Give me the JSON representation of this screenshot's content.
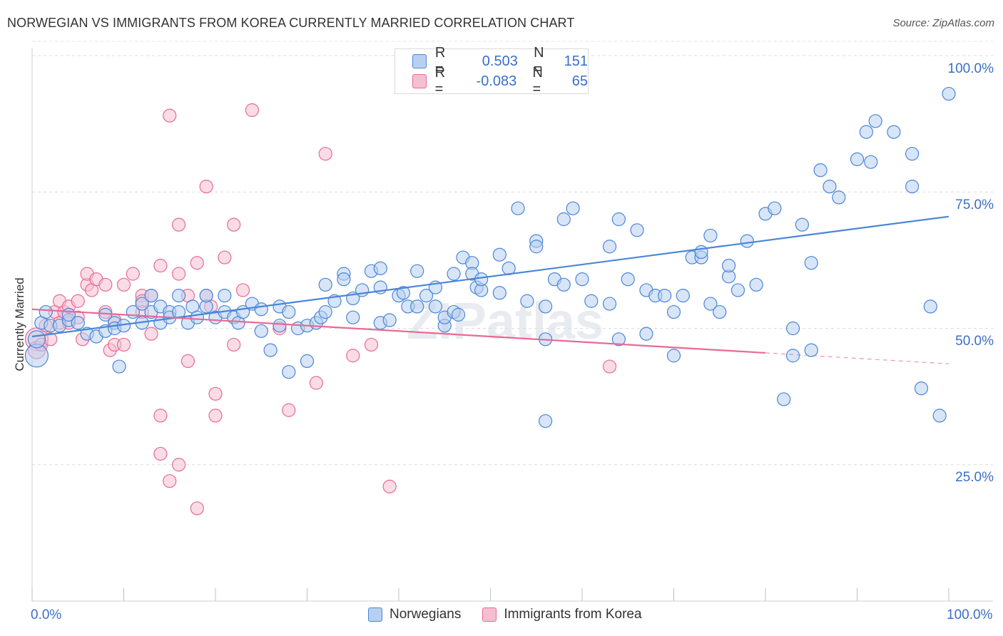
{
  "title": "NORWEGIAN VS IMMIGRANTS FROM KOREA CURRENTLY MARRIED CORRELATION CHART",
  "source": "Source: ZipAtlas.com",
  "legend_stats": [
    {
      "r_label": "R =",
      "r": "0.503",
      "n_label": "N =",
      "n": "151",
      "color": "#4a86d8"
    },
    {
      "r_label": "R =",
      "r": "-0.083",
      "n_label": "N =",
      "n": "65",
      "color": "#e86a95"
    }
  ],
  "colors": {
    "blue": "#4a86d8",
    "blue_fill": "#b8d0f0",
    "pink": "#e86a95",
    "pink_fill": "#f5bfd1",
    "tick": "#3a6fc8"
  },
  "chart_data": {
    "type": "scatter",
    "title": "NORWEGIAN VS IMMIGRANTS FROM KOREA CURRENTLY MARRIED CORRELATION CHART",
    "xlabel": "",
    "ylabel": "Currently Married",
    "xlim": [
      0,
      100
    ],
    "ylim": [
      0,
      100
    ],
    "x_ticks": [
      "0.0%",
      "100.0%"
    ],
    "y_ticks": [
      "25.0%",
      "50.0%",
      "75.0%",
      "100.0%"
    ],
    "grid": true,
    "legend": "bottom",
    "watermark": "ZIPatlas",
    "series": [
      {
        "name": "Norwegians",
        "color": "#4a86d8",
        "trend": {
          "x0": 0,
          "y0": 48.5,
          "x1": 100,
          "y1": 70.5
        },
        "points": [
          [
            0.5,
            45
          ],
          [
            0.5,
            48
          ],
          [
            1,
            51
          ],
          [
            1.5,
            53
          ],
          [
            2,
            50.5
          ],
          [
            3,
            50.5
          ],
          [
            4,
            51.5
          ],
          [
            4,
            52.5
          ],
          [
            5,
            51
          ],
          [
            6,
            49
          ],
          [
            7,
            48.5
          ],
          [
            8,
            52.5
          ],
          [
            8,
            49.5
          ],
          [
            9,
            51
          ],
          [
            9,
            50
          ],
          [
            9.5,
            43
          ],
          [
            10,
            50.5
          ],
          [
            11,
            53
          ],
          [
            12,
            54.5
          ],
          [
            12,
            51
          ],
          [
            13,
            53
          ],
          [
            13,
            56
          ],
          [
            14,
            54
          ],
          [
            14,
            51
          ],
          [
            15,
            53
          ],
          [
            15,
            52
          ],
          [
            16,
            56
          ],
          [
            16,
            53
          ],
          [
            17,
            51
          ],
          [
            17.5,
            54
          ],
          [
            18,
            52
          ],
          [
            19,
            54
          ],
          [
            19,
            56
          ],
          [
            20,
            52
          ],
          [
            21,
            53
          ],
          [
            21,
            56
          ],
          [
            22,
            52
          ],
          [
            22.5,
            51
          ],
          [
            23,
            53
          ],
          [
            24,
            54.5
          ],
          [
            25,
            53.5
          ],
          [
            25,
            49.5
          ],
          [
            26,
            46
          ],
          [
            27,
            54
          ],
          [
            27,
            50.5
          ],
          [
            28,
            53
          ],
          [
            28,
            42
          ],
          [
            29,
            50
          ],
          [
            30,
            44
          ],
          [
            30,
            50.5
          ],
          [
            31,
            51
          ],
          [
            31.5,
            52
          ],
          [
            32,
            53
          ],
          [
            32,
            58
          ],
          [
            33,
            55
          ],
          [
            34,
            60
          ],
          [
            34,
            59
          ],
          [
            35,
            52
          ],
          [
            35,
            55.5
          ],
          [
            36,
            57
          ],
          [
            37,
            60.5
          ],
          [
            38,
            57.5
          ],
          [
            38,
            61
          ],
          [
            38,
            51
          ],
          [
            39,
            51.5
          ],
          [
            40,
            56
          ],
          [
            40.5,
            56.5
          ],
          [
            41,
            54
          ],
          [
            42,
            60.5
          ],
          [
            42,
            54
          ],
          [
            43,
            56
          ],
          [
            44,
            54
          ],
          [
            44,
            57.5
          ],
          [
            45,
            50.5
          ],
          [
            45,
            52
          ],
          [
            46,
            53
          ],
          [
            46.5,
            52.5
          ],
          [
            46,
            60
          ],
          [
            47,
            63
          ],
          [
            48,
            62
          ],
          [
            48,
            60
          ],
          [
            48.5,
            57.5
          ],
          [
            49,
            57
          ],
          [
            49,
            59
          ],
          [
            51,
            56.5
          ],
          [
            51,
            63.5
          ],
          [
            52,
            61
          ],
          [
            53,
            72
          ],
          [
            54,
            55
          ],
          [
            55,
            66
          ],
          [
            55,
            65
          ],
          [
            56,
            48
          ],
          [
            56,
            54
          ],
          [
            57,
            59
          ],
          [
            58,
            70
          ],
          [
            58,
            58
          ],
          [
            59,
            72
          ],
          [
            60,
            59
          ],
          [
            61,
            55
          ],
          [
            63,
            65
          ],
          [
            63,
            54.5
          ],
          [
            64,
            70
          ],
          [
            64,
            48
          ],
          [
            65,
            59
          ],
          [
            66,
            68
          ],
          [
            67,
            57
          ],
          [
            67,
            49
          ],
          [
            68,
            56
          ],
          [
            69,
            56
          ],
          [
            70,
            45
          ],
          [
            70,
            53
          ],
          [
            71,
            56
          ],
          [
            72,
            63
          ],
          [
            73,
            63
          ],
          [
            73,
            64
          ],
          [
            74,
            54.5
          ],
          [
            74,
            67
          ],
          [
            75,
            53
          ],
          [
            76,
            59.5
          ],
          [
            76,
            61.5
          ],
          [
            77,
            57
          ],
          [
            78,
            66
          ],
          [
            79,
            58
          ],
          [
            80,
            71
          ],
          [
            81,
            72
          ],
          [
            82,
            37
          ],
          [
            83,
            45
          ],
          [
            83,
            50
          ],
          [
            84,
            69
          ],
          [
            85,
            46
          ],
          [
            85,
            62
          ],
          [
            86,
            79
          ],
          [
            87,
            76
          ],
          [
            88,
            74
          ],
          [
            90,
            81
          ],
          [
            91,
            86
          ],
          [
            91.5,
            80.5
          ],
          [
            92,
            88
          ],
          [
            94,
            86
          ],
          [
            96,
            82
          ],
          [
            96,
            76
          ],
          [
            97,
            39
          ],
          [
            98,
            54
          ],
          [
            99,
            34
          ],
          [
            100,
            93
          ],
          [
            56,
            33
          ]
        ]
      },
      {
        "name": "Immigrants from Korea",
        "color": "#e86a95",
        "trend": {
          "x0": 0,
          "y0": 53.5,
          "x1": 80,
          "y1": 45.5,
          "dash_to_x": 100,
          "dash_to_y": 43.5
        },
        "points": [
          [
            0.5,
            48
          ],
          [
            0.5,
            46
          ],
          [
            1,
            47
          ],
          [
            1.5,
            50.5
          ],
          [
            2,
            48
          ],
          [
            2.5,
            53
          ],
          [
            3,
            51
          ],
          [
            3,
            55
          ],
          [
            3.5,
            53
          ],
          [
            4,
            54
          ],
          [
            4,
            51
          ],
          [
            5,
            52
          ],
          [
            5,
            55
          ],
          [
            5.5,
            48
          ],
          [
            6,
            58
          ],
          [
            6,
            60
          ],
          [
            6.5,
            57
          ],
          [
            7,
            59
          ],
          [
            8,
            58
          ],
          [
            8,
            53
          ],
          [
            8.5,
            46
          ],
          [
            9,
            51.5
          ],
          [
            9,
            47
          ],
          [
            10,
            58
          ],
          [
            10,
            47
          ],
          [
            11,
            60
          ],
          [
            12,
            56
          ],
          [
            12,
            55
          ],
          [
            12,
            53
          ],
          [
            13,
            56
          ],
          [
            13,
            49
          ],
          [
            14,
            61.5
          ],
          [
            14,
            34
          ],
          [
            14,
            27
          ],
          [
            15,
            89
          ],
          [
            15,
            22
          ],
          [
            16,
            60
          ],
          [
            16,
            69
          ],
          [
            16,
            25
          ],
          [
            17,
            44
          ],
          [
            17,
            56
          ],
          [
            18,
            62
          ],
          [
            18,
            17
          ],
          [
            19,
            56
          ],
          [
            19,
            76
          ],
          [
            19.5,
            54
          ],
          [
            20,
            38
          ],
          [
            20,
            34
          ],
          [
            21,
            63
          ],
          [
            22,
            47
          ],
          [
            22,
            69
          ],
          [
            23,
            57
          ],
          [
            24,
            90
          ],
          [
            27,
            50
          ],
          [
            28,
            35
          ],
          [
            31,
            40
          ],
          [
            32,
            82
          ],
          [
            35,
            45
          ],
          [
            37,
            47
          ],
          [
            39,
            21
          ],
          [
            63,
            43
          ]
        ]
      }
    ]
  }
}
